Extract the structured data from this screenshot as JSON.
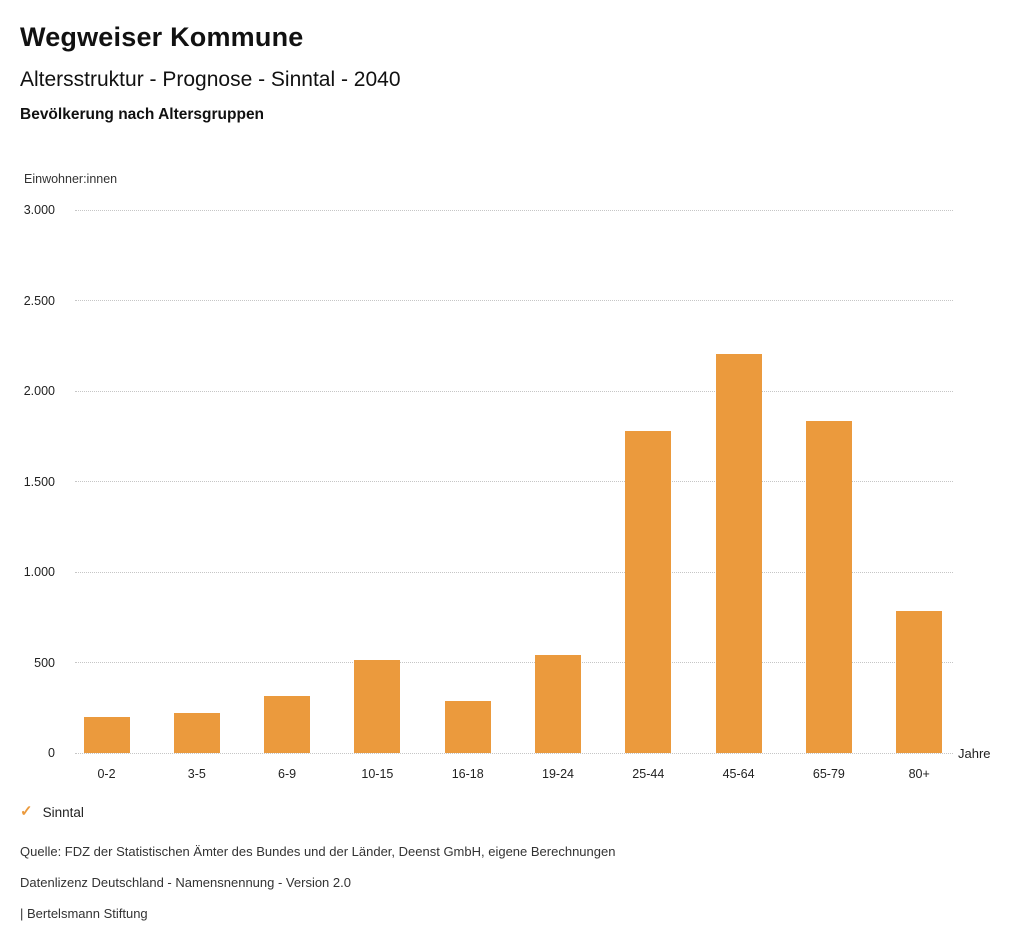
{
  "header": {
    "title": "Wegweiser Kommune",
    "subtitle": "Altersstruktur - Prognose - Sinntal - 2040",
    "chart_title": "Bevölkerung nach Altersgruppen"
  },
  "chart_data": {
    "type": "bar",
    "title": "Bevölkerung nach Altersgruppen",
    "y_unit_label": "Einwohner:innen",
    "x_unit_label": "Jahre",
    "categories": [
      "0-2",
      "3-5",
      "6-9",
      "10-15",
      "16-18",
      "19-24",
      "25-44",
      "45-64",
      "65-79",
      "80+"
    ],
    "series": [
      {
        "name": "Sinntal",
        "values": [
          200,
          220,
          315,
          515,
          285,
          540,
          1780,
          2205,
          1835,
          785
        ]
      }
    ],
    "bar_color": "#EB9A3D",
    "ylim": [
      0,
      3000
    ],
    "yticks": [
      {
        "value": 0,
        "label": "0"
      },
      {
        "value": 500,
        "label": "500"
      },
      {
        "value": 1000,
        "label": "1.000"
      },
      {
        "value": 1500,
        "label": "1.500"
      },
      {
        "value": 2000,
        "label": "2.000"
      },
      {
        "value": 2500,
        "label": "2.500"
      },
      {
        "value": 3000,
        "label": "3.000"
      }
    ],
    "grid": "horizontal-dotted",
    "legend_position": "bottom-left"
  },
  "legend": {
    "check_icon": "✓",
    "label": "Sinntal"
  },
  "footer": {
    "source": "Quelle: FDZ der Statistischen Ämter des Bundes und der Länder, Deenst GmbH, eigene Berechnungen",
    "license": "Datenlizenz Deutschland - Namensnennung - Version 2.0",
    "publisher": "| Bertelsmann Stiftung"
  }
}
